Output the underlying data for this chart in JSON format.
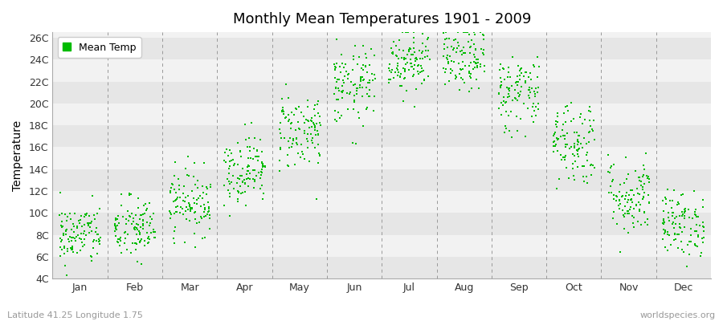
{
  "title": "Monthly Mean Temperatures 1901 - 2009",
  "ylabel": "Temperature",
  "subtitle_left": "Latitude 41.25 Longitude 1.75",
  "subtitle_right": "worldspecies.org",
  "yticks": [
    4,
    6,
    8,
    10,
    12,
    14,
    16,
    18,
    20,
    22,
    24,
    26
  ],
  "ytick_labels": [
    "4C",
    "6C",
    "8C",
    "10C",
    "12C",
    "14C",
    "16C",
    "18C",
    "20C",
    "22C",
    "24C",
    "26C"
  ],
  "ylim": [
    4.0,
    26.5
  ],
  "months": [
    "Jan",
    "Feb",
    "Mar",
    "Apr",
    "May",
    "Jun",
    "Jul",
    "Aug",
    "Sep",
    "Oct",
    "Nov",
    "Dec"
  ],
  "dot_color": "#00bb00",
  "dot_size": 3,
  "bg_color": "#ffffff",
  "plot_bg_color": "#f2f2f2",
  "band_color_light": "#f2f2f2",
  "band_color_dark": "#e6e6e6",
  "dashed_line_color": "#999999",
  "legend_label": "Mean Temp",
  "monthly_mean_temps": [
    8.0,
    8.5,
    11.0,
    14.0,
    17.5,
    21.5,
    24.0,
    24.0,
    21.0,
    16.5,
    11.5,
    9.0
  ],
  "monthly_std_temps": [
    1.4,
    1.5,
    1.5,
    1.6,
    1.8,
    1.8,
    1.5,
    1.5,
    1.8,
    2.0,
    1.8,
    1.5
  ],
  "seed": 42,
  "n_years": 109
}
